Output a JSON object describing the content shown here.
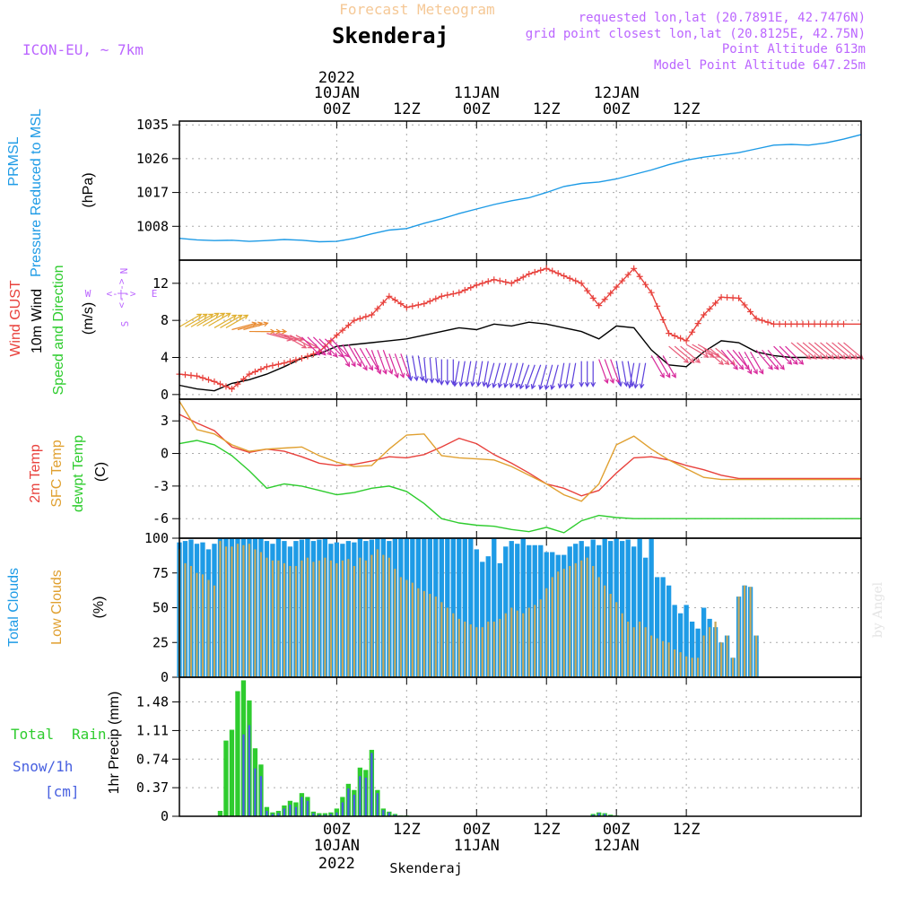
{
  "header": {
    "subtitle": "Forecast Meteogram",
    "location": "Skenderaj",
    "model": "ICON-EU, ~ 7km",
    "requested": "requested lon,lat (20.7891E, 42.7476N)",
    "gridpoint": "grid point closest lon,lat (20.8125E, 42.75N)",
    "point_alt": "Point Altitude 613m",
    "model_alt": "Model Point Altitude 647.25m",
    "credit": "by Angel",
    "footer": "Skenderaj"
  },
  "colors": {
    "pressure": "#1e9be6",
    "wind_mean": "#000000",
    "gust": "#e8413c",
    "temp2m": "#e8413c",
    "sfc_temp": "#e0a030",
    "dewpt": "#2ecc2e",
    "total_cloud": "#1e9be6",
    "low_cloud": "#c8a85a",
    "rain": "#2ecc2e",
    "snow": "#4860e0",
    "label_purple": "#bb66ff"
  },
  "chart_data": [
    {
      "type": "line",
      "panel": "pressure",
      "ylabel_parts": [
        "PRMSL",
        "Pressure Reduced to MSL",
        "(hPa)"
      ],
      "yticks": [
        "1008",
        "1017",
        "1026",
        "1035"
      ],
      "ylim": [
        999,
        1036
      ],
      "x_hours": [
        -27,
        -24,
        -21,
        -18,
        -15,
        -12,
        -9,
        -6,
        -3,
        0,
        3,
        6,
        9,
        12,
        15,
        18,
        21,
        24,
        27,
        30,
        33,
        36,
        39,
        42,
        45,
        48,
        51,
        54,
        57,
        60,
        63,
        66,
        69,
        72,
        75,
        78,
        81,
        84,
        87,
        90
      ],
      "series": [
        {
          "values": [
            1004.8,
            1004.4,
            1004.2,
            1004.3,
            1004.0,
            1004.2,
            1004.5,
            1004.3,
            1003.9,
            1004.0,
            1004.8,
            1006.0,
            1007.0,
            1007.4,
            1008.8,
            1010.0,
            1011.4,
            1012.6,
            1013.8,
            1014.8,
            1015.6,
            1017.0,
            1018.6,
            1019.4,
            1019.8,
            1020.6,
            1021.8,
            1023.0,
            1024.4,
            1025.6,
            1026.4,
            1027.0,
            1027.6,
            1028.6,
            1029.6,
            1029.8,
            1029.6,
            1030.2,
            1031.2,
            1032.4
          ]
        }
      ]
    },
    {
      "type": "line",
      "panel": "wind",
      "ylabel_parts": [
        "Wind GUST",
        "10m Wind",
        "Speed and Direction",
        "(m/s)"
      ],
      "compass": {
        "n": "N",
        "s": "S",
        "w": "W",
        "e": "E",
        "arrow": "<-|->"
      },
      "yticks": [
        "0",
        "4",
        "8",
        "12"
      ],
      "ylim": [
        -0.5,
        14.5
      ],
      "x_hours": [
        -27,
        -24,
        -21,
        -18,
        -15,
        -12,
        -9,
        -6,
        -3,
        0,
        3,
        6,
        9,
        12,
        15,
        18,
        21,
        24,
        27,
        30,
        33,
        36,
        39,
        42,
        45,
        48,
        51,
        54,
        57,
        60,
        63,
        66,
        69,
        72,
        75,
        78,
        81,
        84,
        87,
        90
      ],
      "series": [
        {
          "name": "Wind GUST",
          "values": [
            2.2,
            2.0,
            1.4,
            0.6,
            2.2,
            3.0,
            3.4,
            3.9,
            4.6,
            6.4,
            8.0,
            8.6,
            10.6,
            9.4,
            9.8,
            10.6,
            11.0,
            11.8,
            12.4,
            12.0,
            13.0,
            13.6,
            12.8,
            12.0,
            9.6,
            11.6,
            13.6,
            11.0,
            6.6,
            5.8,
            8.6,
            10.5,
            10.4,
            8.2,
            7.6,
            7.6,
            7.6,
            7.6,
            7.6,
            7.6
          ]
        },
        {
          "name": "10m Wind",
          "values": [
            1.0,
            0.6,
            0.4,
            1.2,
            1.6,
            2.2,
            3.0,
            3.9,
            4.4,
            5.2,
            5.4,
            5.6,
            5.8,
            6.0,
            6.4,
            6.8,
            7.2,
            7.0,
            7.6,
            7.4,
            7.8,
            7.6,
            7.2,
            6.8,
            6.0,
            7.4,
            7.2,
            4.8,
            3.2,
            3.0,
            4.6,
            5.8,
            5.6,
            4.6,
            4.2,
            4.0,
            4.0,
            4.0,
            4.0,
            4.0
          ]
        }
      ],
      "barb_dirs": [
        240,
        240,
        240,
        255,
        270,
        285,
        300,
        315,
        315,
        330,
        330,
        340,
        340,
        350,
        355,
        0,
        10,
        10,
        15,
        15,
        20,
        15,
        10,
        0,
        340,
        350,
        10,
        330,
        310,
        300,
        310,
        320,
        330,
        320,
        315,
        310,
        310,
        310,
        310,
        310
      ],
      "barb_mags": [
        7.3,
        7.4,
        7.2,
        7.0,
        6.8,
        6.6,
        6.4,
        6.2,
        6.0,
        5.4,
        5.0,
        4.8,
        4.4,
        4.2,
        4.0,
        3.8,
        3.6,
        3.6,
        3.4,
        3.4,
        3.2,
        3.2,
        3.4,
        3.6,
        3.8,
        3.6,
        3.4,
        4.2,
        5.2,
        5.4,
        5.0,
        4.8,
        4.6,
        4.8,
        5.2,
        5.6,
        5.6,
        5.6,
        5.6,
        5.6
      ]
    },
    {
      "type": "line",
      "panel": "temperature",
      "ylabel_parts": [
        "2m Temp",
        "SFC Temp",
        "dewpt Temp",
        "(C)"
      ],
      "yticks": [
        "-6",
        "-3",
        "0",
        "3"
      ],
      "ylim": [
        -7.8,
        5.0
      ],
      "x_hours": [
        -27,
        -24,
        -21,
        -18,
        -15,
        -12,
        -9,
        -6,
        -3,
        0,
        3,
        6,
        9,
        12,
        15,
        18,
        21,
        24,
        27,
        30,
        33,
        36,
        39,
        42,
        45,
        48,
        51,
        54,
        57,
        60,
        63,
        66,
        69,
        72,
        75,
        78,
        81,
        84,
        87,
        90
      ],
      "series": [
        {
          "name": "2m Temp",
          "values": [
            3.6,
            2.8,
            2.1,
            0.6,
            0.1,
            0.4,
            0.2,
            -0.3,
            -0.9,
            -1.1,
            -1.0,
            -0.7,
            -0.3,
            -0.4,
            -0.1,
            0.6,
            1.4,
            0.9,
            -0.1,
            -0.9,
            -1.8,
            -2.8,
            -3.2,
            -3.9,
            -3.4,
            -1.8,
            -0.4,
            -0.3,
            -0.6,
            -1.1,
            -1.5,
            -2.0,
            -2.3,
            -2.3,
            -2.3,
            -2.3,
            -2.3,
            -2.3,
            -2.3,
            -2.3
          ]
        },
        {
          "name": "SFC Temp",
          "values": [
            4.8,
            2.2,
            1.8,
            0.8,
            0.2,
            0.4,
            0.5,
            0.6,
            -0.2,
            -0.8,
            -1.2,
            -1.1,
            0.4,
            1.7,
            1.8,
            -0.2,
            -0.4,
            -0.5,
            -0.6,
            -1.2,
            -2.0,
            -2.8,
            -3.8,
            -4.4,
            -2.8,
            0.8,
            1.6,
            0.4,
            -0.6,
            -1.4,
            -2.2,
            -2.4,
            -2.4,
            -2.4,
            -2.4,
            -2.4,
            -2.4,
            -2.4,
            -2.4,
            -2.4
          ]
        },
        {
          "name": "dewpt Temp",
          "values": [
            0.9,
            1.2,
            0.8,
            -0.2,
            -1.6,
            -3.2,
            -2.8,
            -3.0,
            -3.4,
            -3.8,
            -3.6,
            -3.2,
            -3.0,
            -3.5,
            -4.6,
            -6.0,
            -6.4,
            -6.6,
            -6.7,
            -7.0,
            -7.2,
            -6.8,
            -7.3,
            -6.2,
            -5.7,
            -5.9,
            -6.0,
            -6.0,
            -6.0,
            -6.0,
            -6.0,
            -6.0,
            -6.0,
            -6.0,
            -6.0,
            -6.0,
            -6.0,
            -6.0,
            -6.0,
            -6.0
          ]
        }
      ]
    },
    {
      "type": "bar",
      "panel": "clouds",
      "ylabel_parts": [
        "Total Clouds",
        "Low Clouds",
        "(%)"
      ],
      "yticks": [
        "0",
        "25",
        "50",
        "75",
        "100"
      ],
      "ylim": [
        0,
        100
      ],
      "x_hours_start": -27,
      "x_hours_step": 1,
      "series": [
        {
          "name": "Total Clouds",
          "values": [
            97,
            98,
            99,
            96,
            97,
            92,
            96,
            100,
            100,
            100,
            100,
            100,
            100,
            100,
            100,
            98,
            96,
            100,
            98,
            94,
            98,
            99,
            100,
            98,
            99,
            100,
            96,
            97,
            96,
            98,
            97,
            100,
            98,
            99,
            100,
            100,
            98,
            100,
            100,
            100,
            100,
            100,
            100,
            100,
            100,
            100,
            100,
            100,
            100,
            100,
            100,
            92,
            83,
            87,
            100,
            82,
            94,
            98,
            96,
            100,
            95,
            95,
            95,
            90,
            90,
            88,
            88,
            94,
            96,
            98,
            94,
            99,
            95,
            100,
            98,
            100,
            98,
            99,
            94,
            100,
            86,
            100,
            72,
            72,
            66,
            52,
            46,
            52,
            40,
            35,
            50,
            42,
            36,
            25,
            30,
            14,
            58,
            66,
            65,
            30
          ]
        },
        {
          "name": "Low Clouds",
          "values": [
            92,
            82,
            80,
            75,
            74,
            70,
            66,
            98,
            94,
            94,
            96,
            95,
            96,
            92,
            90,
            86,
            84,
            84,
            82,
            80,
            80,
            84,
            86,
            83,
            84,
            86,
            84,
            82,
            84,
            85,
            80,
            86,
            84,
            88,
            92,
            88,
            86,
            78,
            72,
            70,
            68,
            64,
            62,
            60,
            58,
            54,
            50,
            46,
            42,
            40,
            38,
            36,
            36,
            40,
            40,
            42,
            46,
            50,
            48,
            46,
            50,
            52,
            56,
            64,
            72,
            76,
            78,
            80,
            82,
            84,
            86,
            80,
            72,
            66,
            60,
            54,
            46,
            40,
            36,
            40,
            36,
            30,
            28,
            26,
            25,
            20,
            18,
            15,
            14,
            14,
            30,
            36,
            40,
            25,
            30,
            14,
            58,
            66,
            65,
            30
          ]
        }
      ]
    },
    {
      "type": "bar",
      "panel": "precip",
      "ylabel_parts": [
        "Total",
        "Rain",
        "Snow/1h",
        "[cm]",
        "1hr Precip (mm)"
      ],
      "yticks": [
        "0",
        "0.37",
        "0.74",
        "1.11",
        "1.48"
      ],
      "ylim": [
        0,
        1.8
      ],
      "x_hours_start": -27,
      "x_hours_step": 1,
      "series": [
        {
          "name": "Total Rain",
          "values": [
            0,
            0,
            0,
            0,
            0,
            0,
            0,
            0.07,
            0.98,
            1.12,
            1.62,
            1.76,
            1.5,
            0.88,
            0.67,
            0.12,
            0.05,
            0.07,
            0.14,
            0.2,
            0.18,
            0.3,
            0.25,
            0.06,
            0.04,
            0.04,
            0.05,
            0.1,
            0.25,
            0.42,
            0.34,
            0.63,
            0.6,
            0.86,
            0.34,
            0.1,
            0.06,
            0.03,
            0.01,
            0.01,
            0,
            0,
            0,
            0,
            0,
            0,
            0,
            0,
            0,
            0,
            0,
            0,
            0,
            0,
            0,
            0,
            0,
            0,
            0,
            0,
            0,
            0,
            0,
            0,
            0,
            0,
            0,
            0,
            0,
            0,
            0,
            0.03,
            0.05,
            0.04,
            0.02,
            0.01,
            0,
            0,
            0,
            0,
            0,
            0,
            0,
            0,
            0,
            0,
            0,
            0,
            0,
            0,
            0,
            0,
            0,
            0,
            0,
            0,
            0,
            0,
            0,
            0
          ]
        },
        {
          "name": "Snow/1h",
          "values": [
            0,
            0,
            0,
            0,
            0,
            0,
            0,
            0,
            0,
            0,
            0,
            1.06,
            1.18,
            0.62,
            0.52,
            0.07,
            0.03,
            0.04,
            0.1,
            0.15,
            0.12,
            0.25,
            0.2,
            0.04,
            0.02,
            0.02,
            0.03,
            0.05,
            0.18,
            0.36,
            0.28,
            0.52,
            0.5,
            0.82,
            0.3,
            0.08,
            0.05,
            0.02,
            0,
            0,
            0,
            0,
            0,
            0,
            0,
            0,
            0,
            0,
            0,
            0,
            0,
            0,
            0,
            0,
            0,
            0,
            0,
            0,
            0,
            0,
            0,
            0,
            0,
            0,
            0,
            0,
            0,
            0,
            0,
            0,
            0,
            0.02,
            0.04,
            0.03,
            0.01,
            0,
            0,
            0,
            0,
            0,
            0,
            0,
            0,
            0,
            0,
            0,
            0,
            0,
            0,
            0,
            0,
            0,
            0,
            0,
            0,
            0,
            0,
            0,
            0,
            0
          ]
        }
      ]
    }
  ],
  "time_axis": {
    "top_year": "2022",
    "bottom_year": "2022",
    "ticks": [
      {
        "h": 0,
        "time": "00Z",
        "date": "10JAN"
      },
      {
        "h": 12,
        "time": "12Z",
        "date": ""
      },
      {
        "h": 24,
        "time": "00Z",
        "date": "11JAN"
      },
      {
        "h": 36,
        "time": "12Z",
        "date": ""
      },
      {
        "h": 48,
        "time": "00Z",
        "date": "12JAN"
      },
      {
        "h": 60,
        "time": "12Z",
        "date": ""
      }
    ]
  }
}
